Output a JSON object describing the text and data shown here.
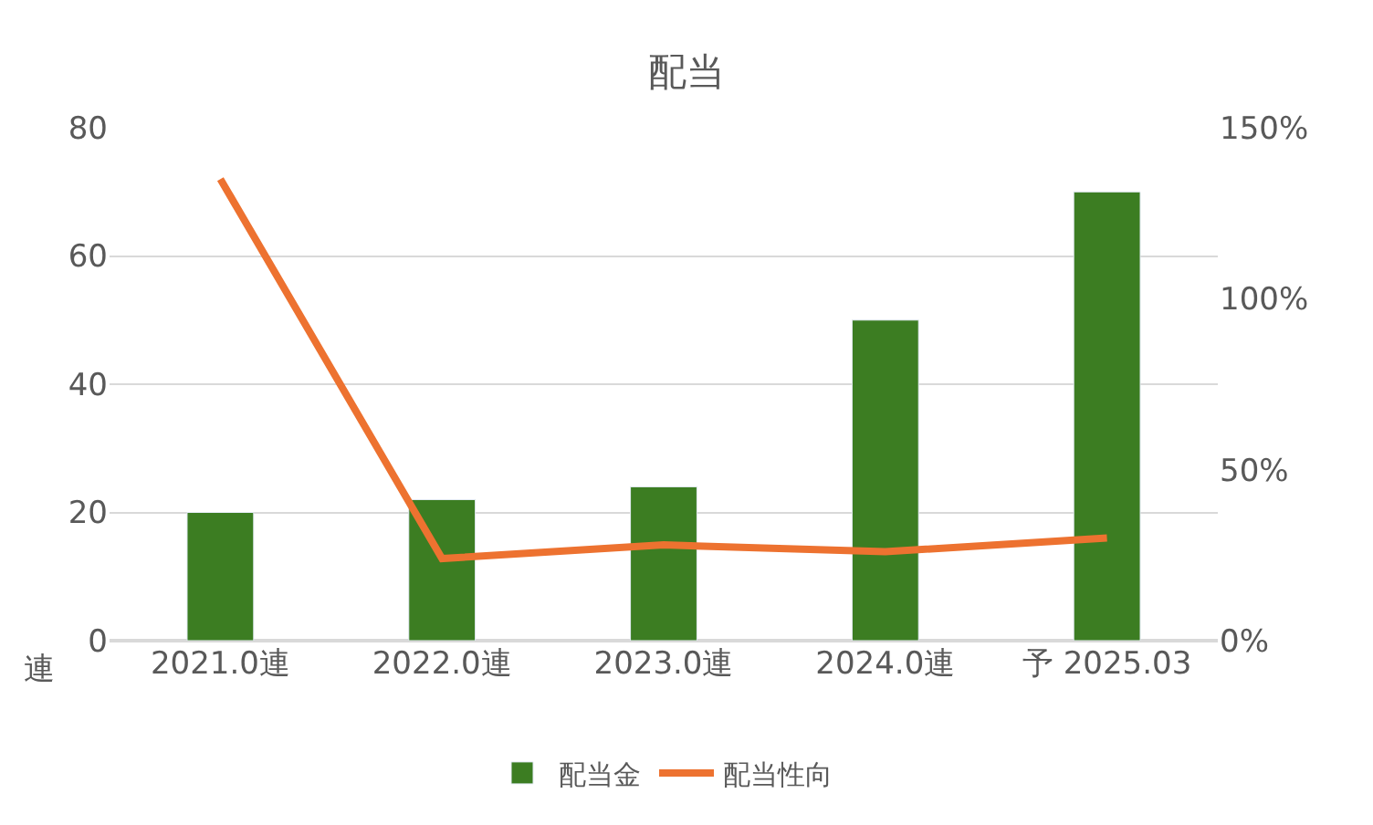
{
  "chart_data": {
    "type": "bar",
    "title": "配当",
    "categories": [
      "2021.0連",
      "2022.0連",
      "2023.0連",
      "2024.0連",
      "予 2025.03"
    ],
    "series": [
      {
        "name": "配当金",
        "color": "#3c7d22",
        "values": [
          20,
          22,
          24,
          50,
          70
        ]
      },
      {
        "name": "配当性向",
        "type": "line",
        "axis": "y2",
        "color": "#ed7230",
        "values": [
          135,
          24,
          28,
          26,
          30
        ]
      }
    ],
    "ylim": [
      0,
      80
    ],
    "yticks": [
      0,
      20,
      40,
      60,
      80
    ],
    "y2lim": [
      0,
      150
    ],
    "y2ticks": [
      {
        "value": 0,
        "label": "0%"
      },
      {
        "value": 50,
        "label": "50%"
      },
      {
        "value": 100,
        "label": "100%"
      },
      {
        "value": 150,
        "label": "150%"
      }
    ],
    "annotations": [
      "連"
    ],
    "grid": "y",
    "legend": "bottom",
    "marker": "none",
    "line_style": "solid"
  }
}
